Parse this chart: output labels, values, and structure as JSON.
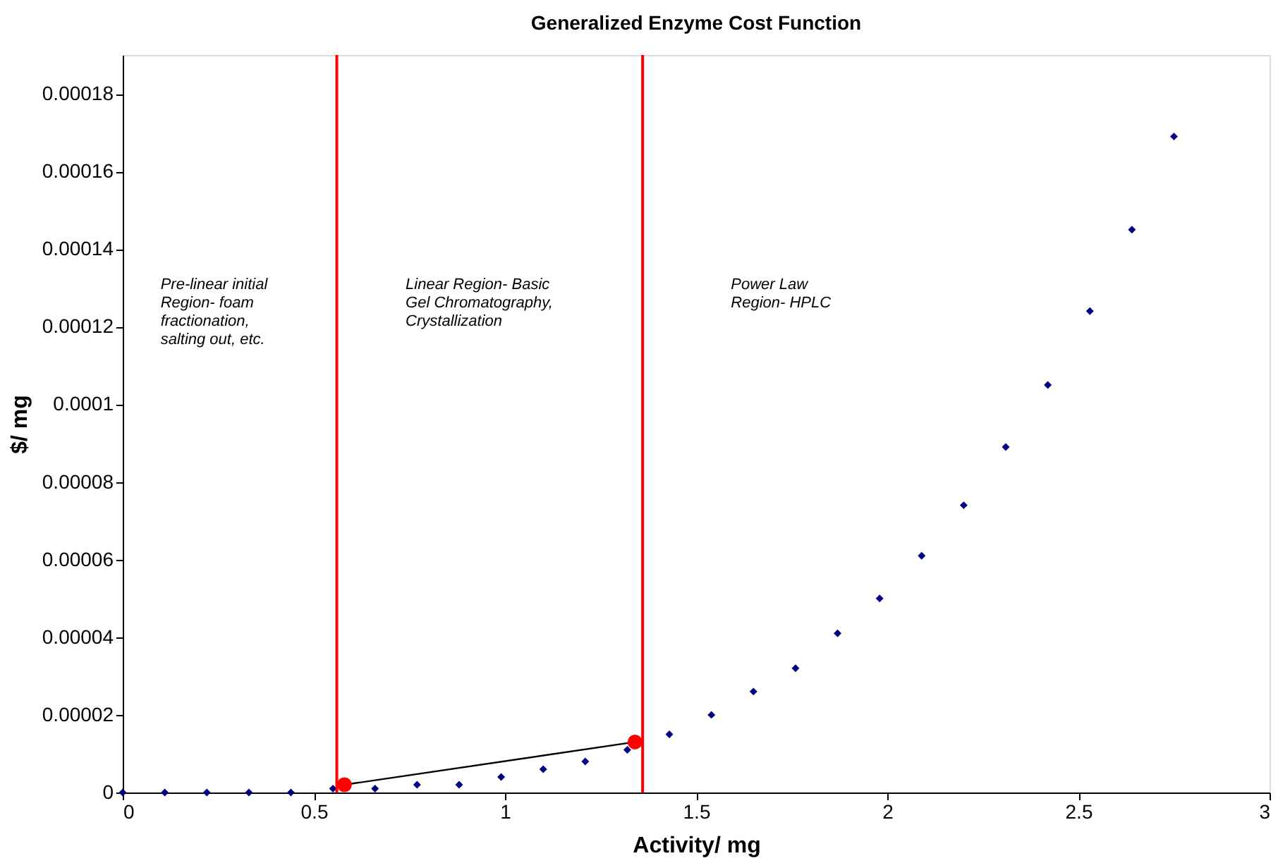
{
  "chart_data": {
    "type": "scatter",
    "title": "Generalized Enzyme Cost Function",
    "xlabel": "Activity/ mg",
    "ylabel": "$/ mg",
    "xlim": [
      0,
      3
    ],
    "xticks": [
      0,
      0.5,
      1,
      1.5,
      2,
      2.5,
      3
    ],
    "ylim": [
      0,
      0.00019
    ],
    "yticks": [
      0,
      {
        "value": 2e-05,
        "label": "0.00002"
      },
      {
        "value": 4e-05,
        "label": "0.00004"
      },
      {
        "value": 6e-05,
        "label": "0.00006"
      },
      {
        "value": 8e-05,
        "label": "0.00008"
      },
      0.0001,
      0.00012,
      0.00014,
      0.00016,
      0.00018
    ],
    "series": [
      {
        "marker": "diamond",
        "color": "#000080",
        "x": [
          0,
          0.11,
          0.22,
          0.33,
          0.44,
          0.55,
          0.66,
          0.77,
          0.88,
          0.99,
          1.1,
          1.21,
          1.32,
          1.43,
          1.54,
          1.65,
          1.76,
          1.87,
          1.98,
          2.09,
          2.2,
          2.31,
          2.42,
          2.53,
          2.64,
          2.75
        ],
        "values": [
          0,
          0,
          0,
          0,
          0,
          1e-06,
          1e-06,
          2e-06,
          2e-06,
          4e-06,
          6e-06,
          8e-06,
          1.1e-05,
          1.5e-05,
          2e-05,
          2.6e-05,
          3.2e-05,
          4.1e-05,
          5e-05,
          6.1e-05,
          7.4e-05,
          8.9e-05,
          0.000105,
          0.000124,
          0.000145,
          0.000169
        ]
      },
      {
        "type": "line",
        "marker": "none",
        "line_style": "solid",
        "color": "#000000",
        "x": [
          0.58,
          1.34
        ],
        "values": [
          2e-06,
          1.3e-05
        ]
      },
      {
        "type": "scatter",
        "marker": "circle",
        "color": "#ff0000",
        "x": [
          0.58,
          1.34
        ],
        "values": [
          2e-06,
          1.3e-05
        ]
      }
    ],
    "ref_lines": [
      {
        "axis": "x",
        "value": 0.56,
        "color": "#ff0000"
      },
      {
        "axis": "x",
        "value": 1.36,
        "color": "#ff0000"
      }
    ],
    "annotations": [
      "Pre-linear initial\nRegion- foam\nfractionation,\nsalting out, etc.",
      "Linear Region- Basic\nGel Chromatography,\nCrystallization",
      "Power Law\nRegion- HPLC"
    ]
  }
}
